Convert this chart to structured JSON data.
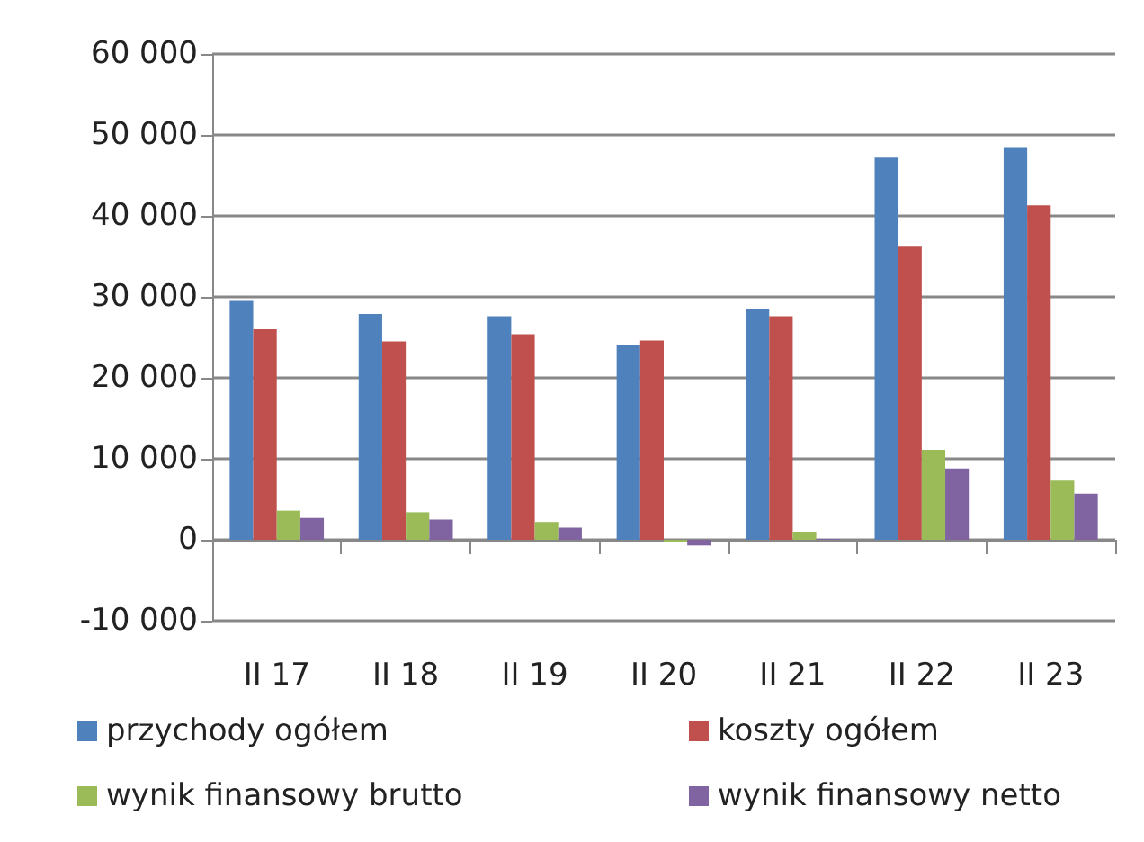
{
  "chart_data": {
    "type": "bar",
    "categories": [
      "II 17",
      "II 18",
      "II 19",
      "II 20",
      "II 21",
      "II 22",
      "II 23"
    ],
    "series": [
      {
        "name": "przychody ogółem",
        "color": "#4f81bd",
        "values": [
          29500,
          27900,
          27600,
          24000,
          28500,
          47200,
          48500
        ]
      },
      {
        "name": "koszty ogółem",
        "color": "#c0504d",
        "values": [
          26000,
          24500,
          25400,
          24600,
          27600,
          36200,
          41300
        ]
      },
      {
        "name": "wynik finansowy brutto",
        "color": "#9bbb59",
        "values": [
          3600,
          3400,
          2200,
          -300,
          1000,
          11100,
          7300
        ]
      },
      {
        "name": "wynik finansowy netto",
        "color": "#8064a2",
        "values": [
          2700,
          2500,
          1500,
          -700,
          100,
          8800,
          5700
        ]
      }
    ],
    "ylim": [
      -10000,
      60000
    ],
    "yticks": [
      {
        "value": -10000,
        "label": "-10 000"
      },
      {
        "value": 0,
        "label": "0"
      },
      {
        "value": 10000,
        "label": "10 000"
      },
      {
        "value": 20000,
        "label": "20 000"
      },
      {
        "value": 30000,
        "label": "30 000"
      },
      {
        "value": 40000,
        "label": "40 000"
      },
      {
        "value": 50000,
        "label": "50 000"
      },
      {
        "value": 60000,
        "label": "60 000"
      }
    ],
    "grid": "y",
    "legend": "bottom"
  }
}
